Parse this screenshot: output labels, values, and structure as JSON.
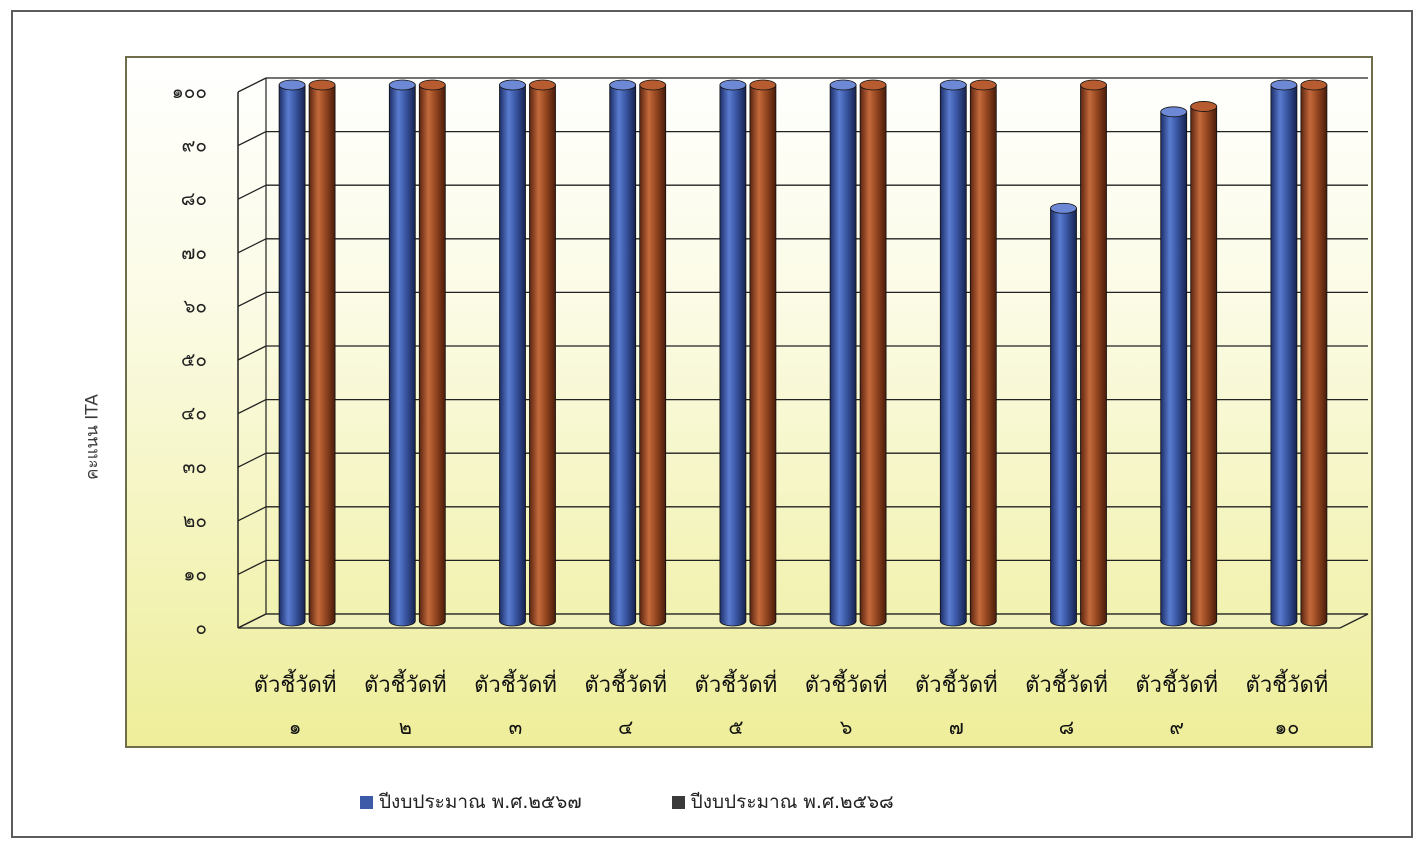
{
  "chart_data": {
    "type": "bar",
    "title": "",
    "xlabel": "",
    "ylabel": "คะแนน ITA",
    "ylim": [
      0,
      100
    ],
    "yticks": [
      "๐",
      "๑๐",
      "๒๐",
      "๓๐",
      "๔๐",
      "๕๐",
      "๖๐",
      "๗๐",
      "๘๐",
      "๙๐",
      "๑๐๐"
    ],
    "categories": [
      {
        "line1": "ตัวชี้วัดที่",
        "line2": "๑"
      },
      {
        "line1": "ตัวชี้วัดที่",
        "line2": "๒"
      },
      {
        "line1": "ตัวชี้วัดที่",
        "line2": "๓"
      },
      {
        "line1": "ตัวชี้วัดที่",
        "line2": "๔"
      },
      {
        "line1": "ตัวชี้วัดที่",
        "line2": "๕"
      },
      {
        "line1": "ตัวชี้วัดที่",
        "line2": "๖"
      },
      {
        "line1": "ตัวชี้วัดที่",
        "line2": "๗"
      },
      {
        "line1": "ตัวชี้วัดที่",
        "line2": "๘"
      },
      {
        "line1": "ตัวชี้วัดที่",
        "line2": "๙"
      },
      {
        "line1": "ตัวชี้วัดที่",
        "line2": "๑๐"
      }
    ],
    "series": [
      {
        "name": "ปีงบประมาณ พ.ศ.๒๕๖๗",
        "color": "#3d5aa8",
        "values": [
          100,
          100,
          100,
          100,
          100,
          100,
          100,
          77,
          95,
          100
        ]
      },
      {
        "name": "ปีงบประมาณ พ.ศ.๒๕๖๘",
        "color": "#9a4a22",
        "values": [
          100,
          100,
          100,
          100,
          100,
          100,
          100,
          100,
          96,
          100
        ]
      }
    ],
    "grid": true,
    "legend_position": "bottom"
  }
}
